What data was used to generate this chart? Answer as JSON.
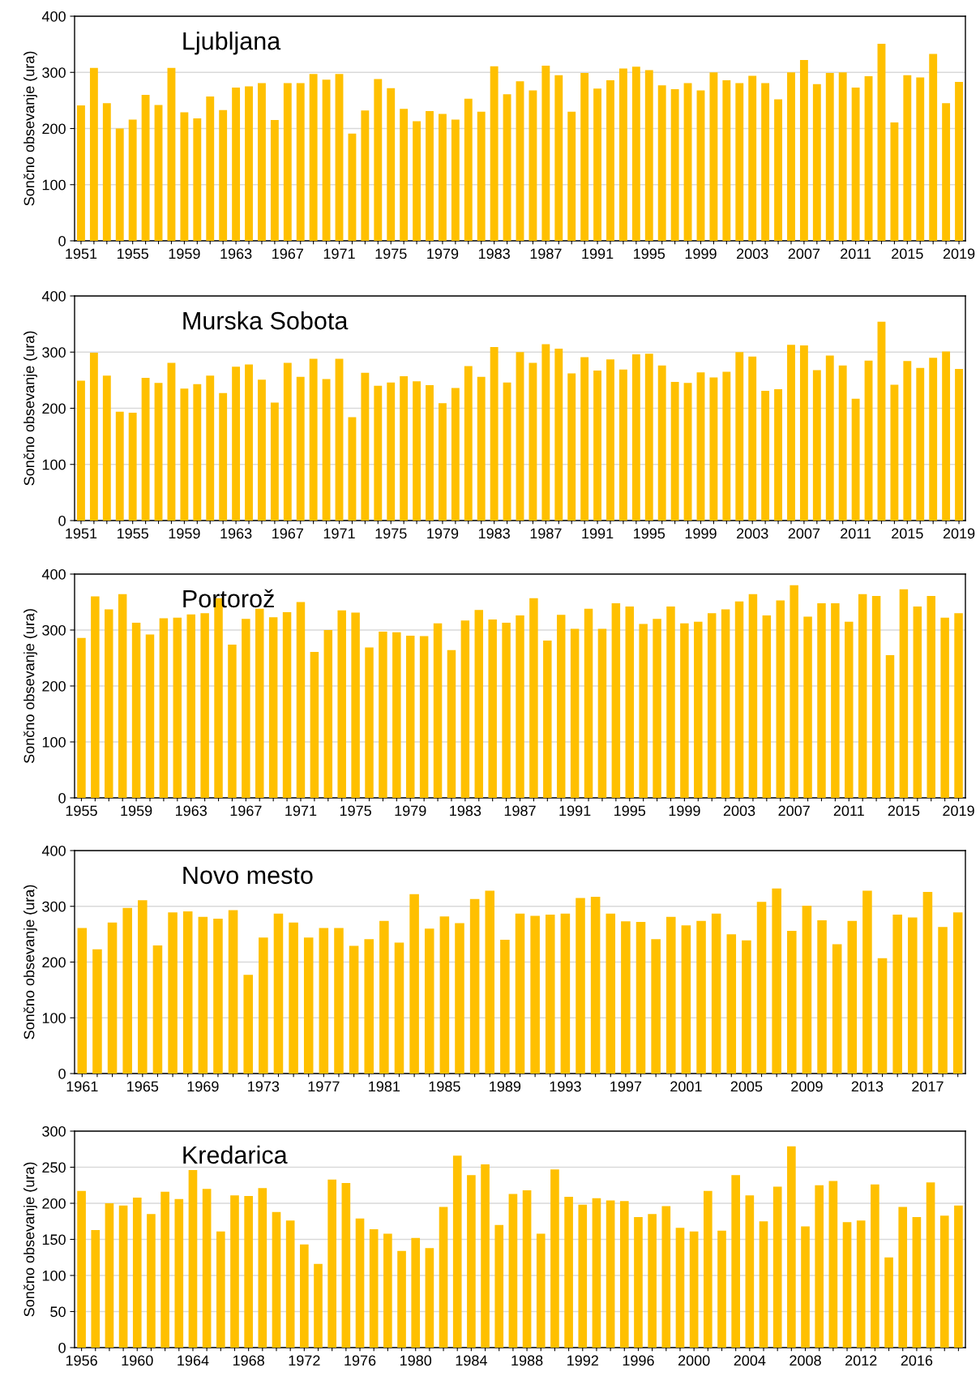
{
  "chart_data": [
    {
      "type": "bar",
      "title": "Ljubljana",
      "ylabel": "Sončno obsevanje (ura)",
      "color": "#ffc000",
      "ylim": [
        0,
        400
      ],
      "yticks": [
        0,
        100,
        200,
        300,
        400
      ],
      "grid": "y",
      "categories": [
        "1951",
        null,
        null,
        null,
        "1955",
        null,
        null,
        null,
        "1959",
        null,
        null,
        null,
        "1963",
        null,
        null,
        null,
        "1967",
        null,
        null,
        null,
        "1971",
        null,
        null,
        null,
        "1975",
        null,
        null,
        null,
        "1979",
        null,
        null,
        null,
        "1983",
        null,
        null,
        null,
        "1987",
        null,
        null,
        null,
        "1991",
        null,
        null,
        null,
        "1995",
        null,
        null,
        null,
        "1999",
        null,
        null,
        null,
        "2003",
        null,
        null,
        null,
        "2007",
        null,
        null,
        null,
        "2011",
        null,
        null,
        null,
        "2015",
        null,
        null,
        null,
        "2019"
      ],
      "values": [
        241,
        308,
        245,
        200,
        216,
        260,
        242,
        308,
        229,
        218,
        257,
        233,
        273,
        275,
        281,
        215,
        281,
        281,
        297,
        287,
        297,
        191,
        232,
        288,
        272,
        235,
        213,
        231,
        226,
        216,
        253,
        230,
        311,
        261,
        284,
        268,
        312,
        295,
        230,
        299,
        271,
        286,
        307,
        310,
        304,
        277,
        270,
        281,
        268,
        300,
        286,
        281,
        294,
        281,
        252,
        300,
        322,
        279,
        299,
        300,
        273,
        293,
        351,
        211,
        295,
        291,
        333,
        245,
        283
      ]
    },
    {
      "type": "bar",
      "title": "Murska Sobota",
      "ylabel": "Sončno obsevanje (ura)",
      "color": "#ffc000",
      "ylim": [
        0,
        400
      ],
      "yticks": [
        0,
        100,
        200,
        300,
        400
      ],
      "grid": "y",
      "categories": [
        "1951",
        null,
        null,
        null,
        "1955",
        null,
        null,
        null,
        "1959",
        null,
        null,
        null,
        "1963",
        null,
        null,
        null,
        "1967",
        null,
        null,
        null,
        "1971",
        null,
        null,
        null,
        "1975",
        null,
        null,
        null,
        "1979",
        null,
        null,
        null,
        "1983",
        null,
        null,
        null,
        "1987",
        null,
        null,
        null,
        "1991",
        null,
        null,
        null,
        "1995",
        null,
        null,
        null,
        "1999",
        null,
        null,
        null,
        "2003",
        null,
        null,
        null,
        "2007",
        null,
        null,
        null,
        "2011",
        null,
        null,
        null,
        "2015",
        null,
        null,
        null,
        "2019"
      ],
      "values": [
        249,
        299,
        258,
        194,
        192,
        254,
        245,
        281,
        235,
        243,
        258,
        227,
        274,
        278,
        251,
        210,
        281,
        256,
        288,
        252,
        288,
        184,
        263,
        240,
        246,
        257,
        248,
        241,
        209,
        236,
        275,
        256,
        309,
        246,
        300,
        281,
        314,
        306,
        262,
        291,
        267,
        287,
        269,
        296,
        297,
        276,
        247,
        245,
        264,
        255,
        265,
        300,
        292,
        231,
        234,
        313,
        312,
        268,
        294,
        276,
        217,
        285,
        354,
        242,
        284,
        272,
        290,
        301,
        270
      ]
    },
    {
      "type": "bar",
      "title": "Portorož",
      "ylabel": "Sončno obsevanje (ura)",
      "color": "#ffc000",
      "ylim": [
        0,
        400
      ],
      "yticks": [
        0,
        100,
        200,
        300,
        400
      ],
      "grid": "y",
      "categories": [
        "1955",
        null,
        null,
        null,
        "1959",
        null,
        null,
        null,
        "1963",
        null,
        null,
        null,
        "1967",
        null,
        null,
        null,
        "1971",
        null,
        null,
        null,
        "1975",
        null,
        null,
        null,
        "1979",
        null,
        null,
        null,
        "1983",
        null,
        null,
        null,
        "1987",
        null,
        null,
        null,
        "1991",
        null,
        null,
        null,
        "1995",
        null,
        null,
        null,
        "1999",
        null,
        null,
        null,
        "2003",
        null,
        null,
        null,
        "2007",
        null,
        null,
        null,
        "2011",
        null,
        null,
        null,
        "2015",
        null,
        null,
        null,
        "2019"
      ],
      "values": [
        286,
        360,
        337,
        364,
        313,
        292,
        321,
        322,
        328,
        330,
        357,
        274,
        320,
        338,
        323,
        332,
        350,
        261,
        300,
        335,
        331,
        269,
        297,
        296,
        290,
        289,
        312,
        264,
        317,
        336,
        319,
        313,
        326,
        357,
        281,
        327,
        302,
        338,
        302,
        348,
        342,
        311,
        320,
        342,
        312,
        315,
        330,
        337,
        351,
        364,
        326,
        353,
        380,
        324,
        348,
        348,
        315,
        364,
        361,
        255,
        373,
        342,
        361,
        322,
        330
      ]
    },
    {
      "type": "bar",
      "title": "Novo mesto",
      "ylabel": "Sončno obsevanje (ura)",
      "color": "#ffc000",
      "ylim": [
        0,
        400
      ],
      "yticks": [
        0,
        100,
        200,
        300,
        400
      ],
      "grid": "y",
      "categories": [
        "1961",
        null,
        null,
        null,
        "1965",
        null,
        null,
        null,
        "1969",
        null,
        null,
        null,
        "1973",
        null,
        null,
        null,
        "1977",
        null,
        null,
        null,
        "1981",
        null,
        null,
        null,
        "1985",
        null,
        null,
        null,
        "1989",
        null,
        null,
        null,
        "1993",
        null,
        null,
        null,
        "1997",
        null,
        null,
        null,
        "2001",
        null,
        null,
        null,
        "2005",
        null,
        null,
        null,
        "2009",
        null,
        null,
        null,
        "2013",
        null,
        null,
        null,
        "2017",
        null,
        null
      ],
      "values": [
        261,
        223,
        271,
        297,
        311,
        230,
        289,
        291,
        281,
        278,
        293,
        177,
        244,
        287,
        271,
        244,
        261,
        261,
        229,
        241,
        274,
        235,
        322,
        260,
        282,
        270,
        313,
        328,
        240,
        287,
        283,
        285,
        287,
        315,
        317,
        287,
        273,
        272,
        241,
        281,
        266,
        274,
        287,
        250,
        239,
        308,
        332,
        256,
        301,
        275,
        232,
        274,
        328,
        207,
        285,
        280,
        326,
        263,
        289
      ]
    },
    {
      "type": "bar",
      "title": "Kredarica",
      "ylabel": "Sončno obsevanje (ura)",
      "color": "#ffc000",
      "ylim": [
        0,
        300
      ],
      "yticks": [
        0,
        50,
        100,
        150,
        200,
        250,
        300
      ],
      "grid": "y",
      "categories": [
        "1956",
        null,
        null,
        null,
        "1960",
        null,
        null,
        null,
        "1964",
        null,
        null,
        null,
        "1968",
        null,
        null,
        null,
        "1972",
        null,
        null,
        null,
        "1976",
        null,
        null,
        null,
        "1980",
        null,
        null,
        null,
        "1984",
        null,
        null,
        null,
        "1988",
        null,
        null,
        null,
        "1992",
        null,
        null,
        null,
        "1996",
        null,
        null,
        null,
        "2000",
        null,
        null,
        null,
        "2004",
        null,
        null,
        null,
        "2008",
        null,
        null,
        null,
        "2012",
        null,
        null,
        null,
        "2016",
        null,
        null,
        null
      ],
      "values": [
        217,
        163,
        200,
        197,
        208,
        185,
        216,
        206,
        246,
        220,
        161,
        211,
        210,
        221,
        188,
        176,
        143,
        116,
        233,
        228,
        179,
        164,
        158,
        134,
        152,
        138,
        195,
        266,
        239,
        254,
        170,
        213,
        218,
        158,
        247,
        209,
        198,
        207,
        204,
        203,
        181,
        185,
        196,
        166,
        161,
        217,
        162,
        239,
        211,
        175,
        223,
        279,
        168,
        225,
        231,
        174,
        176,
        226,
        125,
        195,
        181,
        229,
        183,
        197
      ]
    }
  ]
}
